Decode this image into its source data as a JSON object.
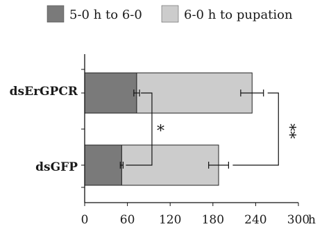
{
  "chart_data": {
    "type": "bar",
    "orientation": "horizontal",
    "stacked": true,
    "categories": [
      "dsErGPCR",
      "dsGFP"
    ],
    "series": [
      {
        "name": "5-0 h to 6-0",
        "values": [
          73,
          52
        ],
        "color": "#7a7a7a"
      },
      {
        "name": "6-0 h to pupation",
        "values": [
          162,
          136
        ],
        "color": "#cccccc"
      }
    ],
    "error": {
      "series1_err": [
        4,
        2
      ],
      "series2_err": [
        16,
        14
      ]
    },
    "xlim": [
      0,
      300
    ],
    "xticks": [
      "0",
      "60",
      "120",
      "180",
      "240",
      "300"
    ],
    "x_unit": "h",
    "legend_position": "top",
    "grid": false,
    "significance": [
      {
        "label": "*",
        "between": "5-0 h to 6-0"
      },
      {
        "label": "**",
        "between": "6-0 h to pupation"
      }
    ]
  }
}
